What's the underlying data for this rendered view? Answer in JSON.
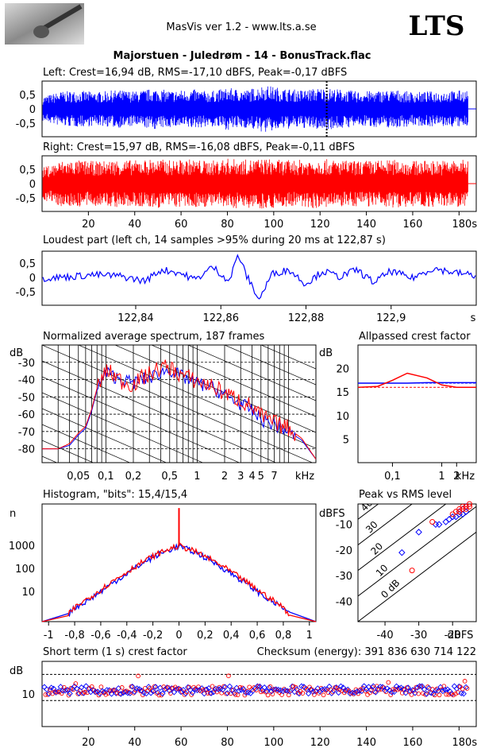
{
  "header": {
    "app_title": "MasVis ver 1.2 - www.lts.a.se",
    "logo_text": "LTS",
    "track_title": "Majorstuen - Juledrøm - 14 - BonusTrack.flac"
  },
  "colors": {
    "left": "#0000ff",
    "right": "#ff0000"
  },
  "chart_data": [
    {
      "type": "line",
      "id": "left_waveform",
      "title": "Left: Crest=16,94 dB, RMS=-17,10 dBFS, Peak=-0,17 dBFS",
      "yticks": [
        "0,5",
        "0",
        "-0,5"
      ],
      "ylim": [
        -0.95,
        0.95
      ],
      "xlim": [
        0,
        184
      ],
      "envelope_peak": [
        0.42,
        0.6,
        0.62,
        0.58,
        0.65,
        0.6,
        0.7,
        0.62,
        0.68,
        0.6,
        0.72,
        0.65,
        0.82,
        0.7,
        0.65,
        0.72,
        0.68,
        0.6,
        0.62,
        0.66,
        0.58,
        0.6,
        0.62,
        0.65
      ],
      "marker_x": 122.87
    },
    {
      "type": "line",
      "id": "right_waveform",
      "title": "Right: Crest=15,97 dB, RMS=-16,08 dBFS, Peak=-0,11 dBFS",
      "yticks": [
        "0,5",
        "0",
        "-0,5"
      ],
      "ylim": [
        -0.95,
        0.95
      ],
      "xlim": [
        0,
        184
      ],
      "envelope_peak": [
        0.55,
        0.78,
        0.8,
        0.76,
        0.82,
        0.8,
        0.85,
        0.8,
        0.84,
        0.78,
        0.86,
        0.82,
        0.86,
        0.8,
        0.82,
        0.85,
        0.8,
        0.78,
        0.8,
        0.82,
        0.78,
        0.8,
        0.8,
        0.82
      ],
      "xticks": [
        "20",
        "40",
        "60",
        "80",
        "100",
        "120",
        "140",
        "160",
        "180s"
      ]
    },
    {
      "type": "line",
      "id": "loudest_part",
      "title": "Loudest part (left  ch, 14 samples >95% during 20 ms at 122,87 s)",
      "yticks": [
        "0,5",
        "0",
        "-0,5"
      ],
      "ylim": [
        -0.95,
        0.95
      ],
      "xlim": [
        122.818,
        122.92
      ],
      "xticks": [
        "122,84",
        "122,86",
        "122,88",
        "122,9",
        "s"
      ],
      "xtick_values": [
        122.84,
        122.86,
        122.88,
        122.9
      ],
      "x": [
        122.818,
        122.824,
        122.83,
        122.836,
        122.842,
        122.846,
        122.85,
        122.854,
        122.858,
        122.862,
        122.864,
        122.866,
        122.869,
        122.872,
        122.876,
        122.88,
        122.884,
        122.888,
        122.892,
        122.896,
        122.9,
        122.905,
        122.91,
        122.915,
        122.92
      ],
      "y": [
        0.0,
        0.05,
        0.12,
        0.08,
        -0.1,
        0.3,
        0.2,
        -0.05,
        0.4,
        -0.1,
        0.85,
        0.1,
        -0.75,
        0.15,
        0.3,
        -0.2,
        0.25,
        0.05,
        0.3,
        -0.15,
        0.25,
        0.0,
        0.35,
        0.2,
        0.1
      ]
    },
    {
      "type": "line",
      "id": "spectrum",
      "title": "Normalized average spectrum, 187 frames",
      "ylabel": "dB",
      "xlabel": "kHz",
      "ylim": [
        -88,
        -20
      ],
      "yticks": [
        "-30",
        "-40",
        "-50",
        "-60",
        "-70",
        "-80"
      ],
      "ytick_values": [
        -30,
        -40,
        -50,
        -60,
        -70,
        -80
      ],
      "xlim": [
        0.02,
        20
      ],
      "xscale": "log",
      "xticks": [
        "0,05",
        "0,1",
        "0,2",
        "0,5",
        "1",
        "2",
        "3",
        "4",
        "5",
        "7"
      ],
      "xtick_values": [
        0.05,
        0.1,
        0.2,
        0.5,
        1,
        2,
        3,
        4,
        5,
        7
      ],
      "x": [
        0.02,
        0.03,
        0.04,
        0.05,
        0.06,
        0.07,
        0.08,
        0.1,
        0.12,
        0.15,
        0.2,
        0.25,
        0.3,
        0.4,
        0.5,
        0.6,
        0.8,
        1,
        1.5,
        2,
        3,
        4,
        5,
        7,
        10,
        14,
        20
      ],
      "series": [
        {
          "name": "",
          "values": [
            -80,
            -80,
            -78,
            -72,
            -68,
            -58,
            -46,
            -36,
            -38,
            -40,
            -42,
            -40,
            -39,
            -36,
            -34,
            -37,
            -40,
            -42,
            -45,
            -49,
            -54,
            -58,
            -63,
            -66,
            -70,
            -75,
            -86
          ]
        },
        {
          "name": "",
          "values": [
            -80,
            -80,
            -77,
            -71,
            -67,
            -57,
            -45,
            -35,
            -37,
            -41,
            -43,
            -39,
            -37,
            -33,
            -33,
            -36,
            -39,
            -41,
            -44,
            -48,
            -52,
            -56,
            -61,
            -65,
            -68,
            -74,
            -86
          ]
        }
      ]
    },
    {
      "type": "line",
      "id": "allpassed_crest",
      "title": "Allpassed crest factor",
      "ylabel": "dB",
      "xlabel": "kHz",
      "ylim": [
        0,
        25
      ],
      "yticks": [
        "20",
        "15",
        "10",
        "5"
      ],
      "ytick_values": [
        20,
        15,
        10,
        5
      ],
      "xlim": [
        0.02,
        5
      ],
      "xscale": "log",
      "xticks": [
        "0,1",
        "1",
        "2"
      ],
      "xtick_values": [
        0.1,
        1,
        2
      ],
      "x": [
        0.02,
        0.05,
        0.1,
        0.2,
        0.5,
        1,
        2,
        5
      ],
      "series": [
        {
          "name": "",
          "values": [
            16.9,
            16.9,
            16.9,
            16.9,
            17,
            17,
            17,
            17
          ]
        },
        {
          "name": "",
          "values": [
            16,
            16.2,
            17.5,
            19,
            18,
            16.5,
            16,
            16
          ]
        }
      ],
      "reference_lines": [
        16.9,
        16
      ]
    },
    {
      "type": "line",
      "id": "histogram",
      "title": "Histogram, \"bits\": 15,4/15,4",
      "ylabel": "n",
      "yscale": "log",
      "ylim": [
        0.5,
        60000
      ],
      "yticks": [
        "1000",
        "100",
        "10"
      ],
      "ytick_values": [
        1000,
        100,
        10
      ],
      "xlim": [
        -1.05,
        1.05
      ],
      "xticks": [
        "-1",
        "-0,8",
        "-0,6",
        "-0,4",
        "-0,2",
        "0",
        "0,2",
        "0,4",
        "0,6",
        "0,8",
        "1"
      ],
      "xtick_values": [
        -1,
        -0.8,
        -0.6,
        -0.4,
        -0.2,
        0,
        0.2,
        0.4,
        0.6,
        0.8,
        1
      ],
      "x": [
        -0.85,
        -0.8,
        -0.7,
        -0.6,
        -0.5,
        -0.4,
        -0.3,
        -0.2,
        -0.1,
        0,
        0.1,
        0.2,
        0.3,
        0.4,
        0.5,
        0.6,
        0.7,
        0.8,
        0.85
      ],
      "series": [
        {
          "name": "",
          "values": [
            1,
            2,
            4,
            10,
            25,
            60,
            140,
            300,
            550,
            900,
            550,
            300,
            140,
            60,
            25,
            10,
            4,
            2,
            1
          ]
        },
        {
          "name": "",
          "values": [
            1,
            2,
            5,
            12,
            30,
            70,
            160,
            330,
            600,
            950,
            600,
            330,
            160,
            70,
            30,
            12,
            5,
            2,
            1
          ]
        }
      ],
      "zero_spike": 40000
    },
    {
      "type": "scatter",
      "id": "peak_vs_rms",
      "title": "Peak vs RMS level",
      "ylabel": "dBFS",
      "xlabel": "dBFS",
      "xlim": [
        -48,
        -13
      ],
      "ylim": [
        -48,
        -2
      ],
      "xticks": [
        "-40",
        "-30",
        "-20"
      ],
      "xtick_values": [
        -40,
        -30,
        -20
      ],
      "yticks": [
        "-10",
        "-20",
        "-30",
        "-40"
      ],
      "ytick_values": [
        -10,
        -20,
        -30,
        -40
      ],
      "diagonal_labels": [
        "40",
        "30",
        "20",
        "10",
        "0 dB"
      ],
      "diagonal_offsets": [
        40,
        30,
        20,
        10,
        0
      ],
      "series": [
        {
          "name": "",
          "points": [
            [
              -35,
              -21
            ],
            [
              -30,
              -13
            ],
            [
              -25,
              -10
            ],
            [
              -24,
              -10
            ],
            [
              -22,
              -9
            ],
            [
              -21,
              -8
            ],
            [
              -20,
              -7
            ],
            [
              -19,
              -7
            ],
            [
              -18,
              -6
            ],
            [
              -18,
              -5
            ],
            [
              -17,
              -6
            ],
            [
              -17,
              -4
            ],
            [
              -16,
              -5
            ],
            [
              -16,
              -3
            ]
          ]
        },
        {
          "name": "",
          "points": [
            [
              -32,
              -28
            ],
            [
              -26,
              -9
            ],
            [
              -20,
              -6
            ],
            [
              -19,
              -5
            ],
            [
              -18,
              -5
            ],
            [
              -18,
              -4
            ],
            [
              -17,
              -3
            ],
            [
              -17,
              -4
            ],
            [
              -16,
              -3
            ],
            [
              -16,
              -4
            ],
            [
              -15,
              -3
            ],
            [
              -15,
              -2
            ]
          ]
        }
      ]
    },
    {
      "type": "scatter",
      "id": "short_term_crest",
      "title": "Short term (1 s) crest factor",
      "ylabel": "dB",
      "xlim": [
        0,
        184
      ],
      "ylim": [
        0,
        20
      ],
      "yticks": [
        "10"
      ],
      "ytick_values": [
        10
      ],
      "reference_lines": [
        16,
        8
      ],
      "xticks": [
        "20",
        "40",
        "60",
        "80",
        "100",
        "120",
        "140",
        "160",
        "180s"
      ],
      "xtick_values": [
        20,
        40,
        60,
        80,
        100,
        120,
        140,
        160,
        180
      ]
    }
  ],
  "checksum": "Checksum (energy):   391 836 630 714 122"
}
